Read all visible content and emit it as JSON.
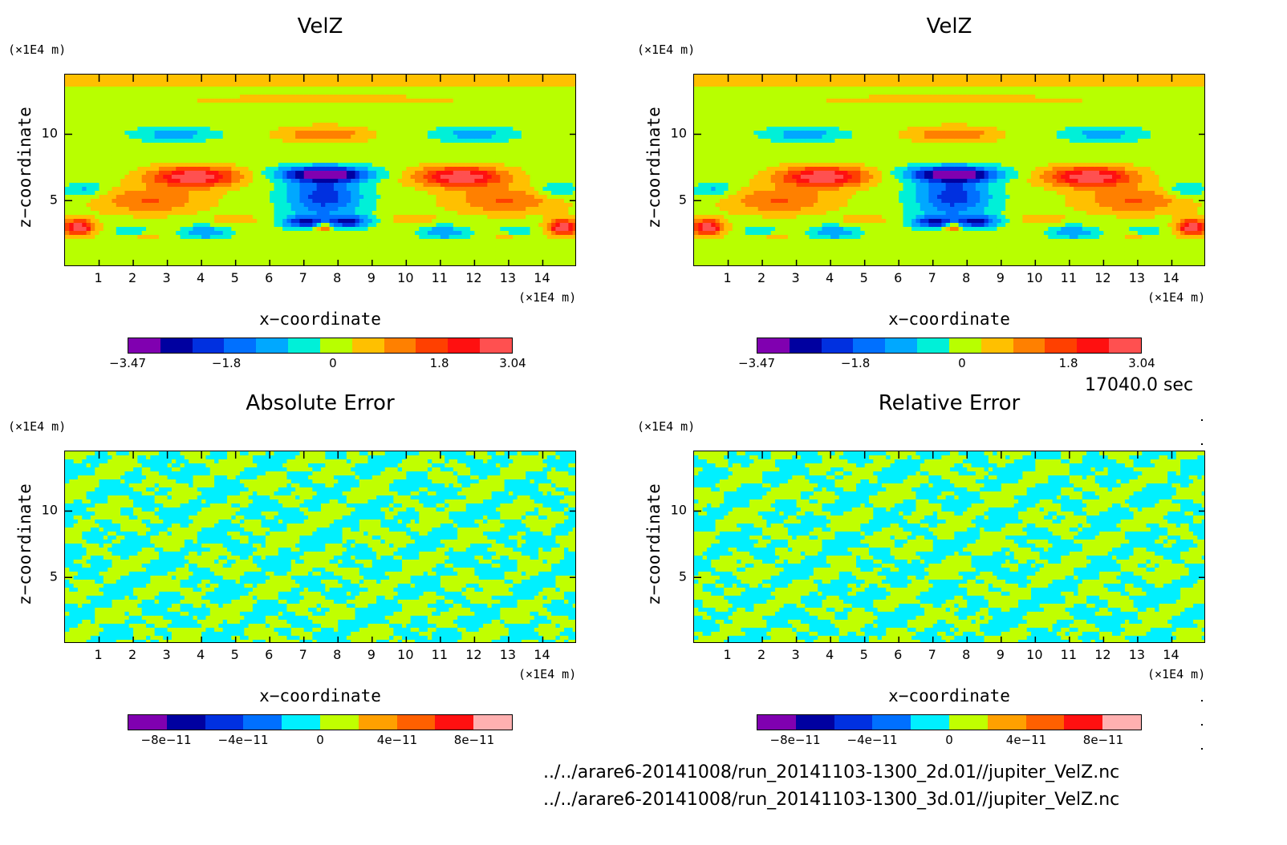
{
  "footer": {
    "time": "17040.0 sec",
    "file1": "../../arare6-20141008/run_20141103-1300_2d.01//jupiter_VelZ.nc",
    "file2": "../../arare6-20141008/run_20141103-1300_3d.01//jupiter_VelZ.nc"
  },
  "chart_data": [
    {
      "type": "heatmap",
      "title": "VelZ",
      "xlabel": "x−coordinate",
      "ylabel": "z−coordinate",
      "x_unit": "(×1E4 m)",
      "y_unit": "(×1E4 m)",
      "xlim": [
        0,
        15
      ],
      "ylim": [
        0,
        14.5
      ],
      "x_ticks": [
        "1",
        "2",
        "3",
        "4",
        "5",
        "6",
        "7",
        "8",
        "9",
        "10",
        "11",
        "12",
        "13",
        "14"
      ],
      "y_ticks": [
        "5",
        "10"
      ],
      "colorbar": {
        "colors": [
          "#8000b0",
          "#0000a0",
          "#0030e0",
          "#0070ff",
          "#00a8ff",
          "#00f0d8",
          "#b8ff00",
          "#ffc000",
          "#ff8000",
          "#ff4000",
          "#ff1010",
          "#ff5050"
        ],
        "labels": [
          "−3.47",
          "−1.8",
          "0",
          "1.8",
          "3.04"
        ],
        "label_positions": [
          -3.47,
          -1.8,
          0,
          1.8,
          3.04
        ],
        "range": [
          -3.47,
          3.04
        ]
      },
      "field": "velz"
    },
    {
      "type": "heatmap",
      "title": "VelZ",
      "xlabel": "x−coordinate",
      "ylabel": "z−coordinate",
      "x_unit": "(×1E4 m)",
      "y_unit": "(×1E4 m)",
      "xlim": [
        0,
        15
      ],
      "ylim": [
        0,
        14.5
      ],
      "x_ticks": [
        "1",
        "2",
        "3",
        "4",
        "5",
        "6",
        "7",
        "8",
        "9",
        "10",
        "11",
        "12",
        "13",
        "14"
      ],
      "y_ticks": [
        "5",
        "10"
      ],
      "colorbar": {
        "colors": [
          "#8000b0",
          "#0000a0",
          "#0030e0",
          "#0070ff",
          "#00a8ff",
          "#00f0d8",
          "#b8ff00",
          "#ffc000",
          "#ff8000",
          "#ff4000",
          "#ff1010",
          "#ff5050"
        ],
        "labels": [
          "−3.47",
          "−1.8",
          "0",
          "1.8",
          "3.04"
        ],
        "label_positions": [
          -3.47,
          -1.8,
          0,
          1.8,
          3.04
        ],
        "range": [
          -3.47,
          3.04
        ]
      },
      "field": "velz"
    },
    {
      "type": "heatmap",
      "title": "Absolute Error",
      "xlabel": "x−coordinate",
      "ylabel": "z−coordinate",
      "x_unit": "(×1E4 m)",
      "y_unit": "(×1E4 m)",
      "xlim": [
        0,
        15
      ],
      "ylim": [
        0,
        14.5
      ],
      "x_ticks": [
        "1",
        "2",
        "3",
        "4",
        "5",
        "6",
        "7",
        "8",
        "9",
        "10",
        "11",
        "12",
        "13",
        "14"
      ],
      "y_ticks": [
        "5",
        "10"
      ],
      "colorbar": {
        "colors": [
          "#8000b0",
          "#0000a0",
          "#0030e0",
          "#0070ff",
          "#00f0ff",
          "#c0ff00",
          "#ffa000",
          "#ff6000",
          "#ff1010",
          "#ffb0b0"
        ],
        "labels": [
          "−8e−11",
          "−4e−11",
          "0",
          "4e−11",
          "8e−11"
        ],
        "label_positions": [
          -8e-11,
          -4e-11,
          0,
          4e-11,
          8e-11
        ],
        "range": [
          -1e-10,
          1e-10
        ]
      },
      "field": "error"
    },
    {
      "type": "heatmap",
      "title": "Relative Error",
      "xlabel": "x−coordinate",
      "ylabel": "z−coordinate",
      "x_unit": "(×1E4 m)",
      "y_unit": "(×1E4 m)",
      "xlim": [
        0,
        15
      ],
      "ylim": [
        0,
        14.5
      ],
      "x_ticks": [
        "1",
        "2",
        "3",
        "4",
        "5",
        "6",
        "7",
        "8",
        "9",
        "10",
        "11",
        "12",
        "13",
        "14"
      ],
      "y_ticks": [
        "5",
        "10"
      ],
      "colorbar": {
        "colors": [
          "#8000b0",
          "#0000a0",
          "#0030e0",
          "#0070ff",
          "#00f0ff",
          "#c0ff00",
          "#ffa000",
          "#ff6000",
          "#ff1010",
          "#ffb0b0"
        ],
        "labels": [
          "−8e−11",
          "−4e−11",
          "0",
          "4e−11",
          "8e−11"
        ],
        "label_positions": [
          -8e-11,
          -4e-11,
          0,
          4e-11,
          8e-11
        ],
        "range": [
          -1e-10,
          1e-10
        ]
      },
      "field": "error2"
    }
  ]
}
